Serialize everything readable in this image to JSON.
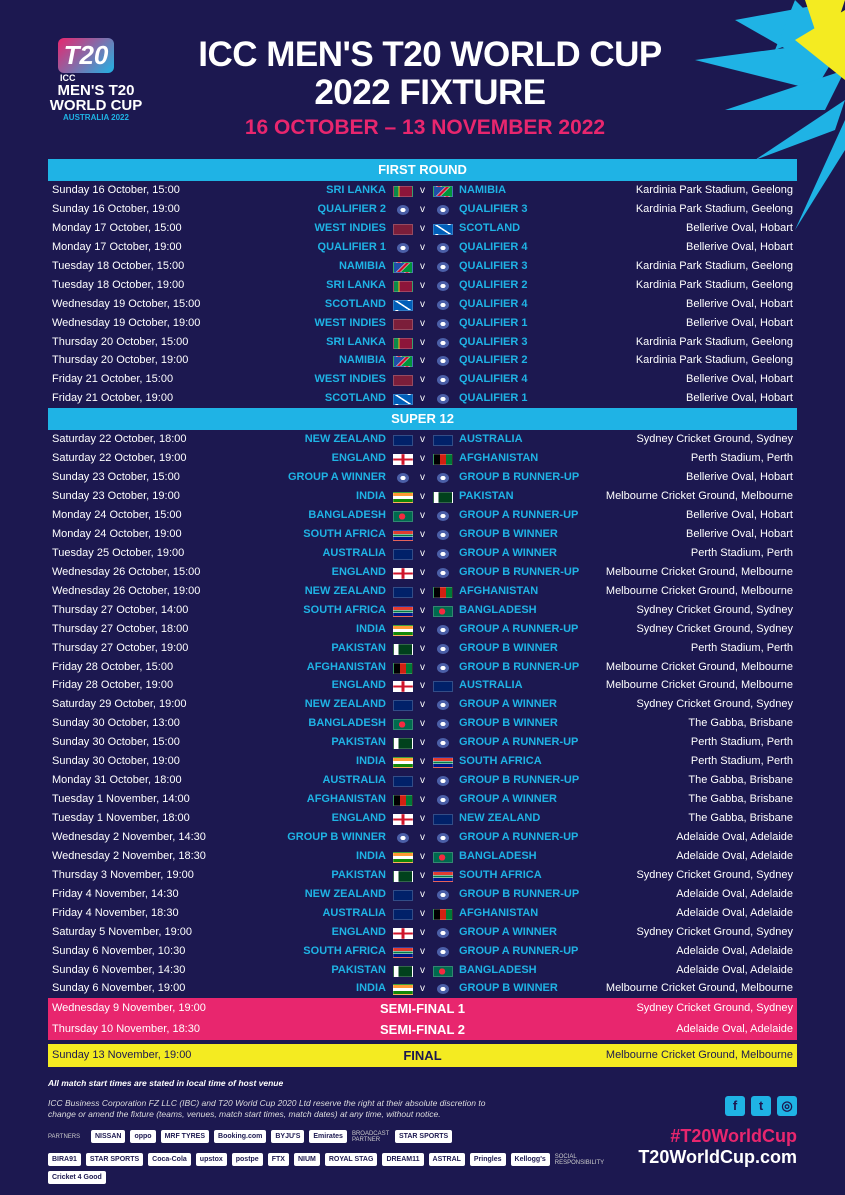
{
  "header": {
    "logo_text": [
      "ICC",
      "MEN'S T20",
      "WORLD CUP",
      "AUSTRALIA 2022"
    ],
    "title_line1": "ICC MEN'S T20 WORLD CUP",
    "title_line2": "2022 FIXTURE",
    "dates": "16 OCTOBER – 13 NOVEMBER 2022"
  },
  "colors": {
    "background": "#1c1850",
    "accent_cyan": "#1fb3e5",
    "accent_pink": "#e8266e",
    "accent_yellow": "#f4eb21"
  },
  "vs_label": "v",
  "first_round": {
    "title": "FIRST ROUND",
    "matches": [
      [
        "Sunday 16 October, 15:00",
        "SRI LANKA",
        "NAMIBIA",
        "Kardinia Park Stadium, Geelong"
      ],
      [
        "Sunday 16 October, 19:00",
        "QUALIFIER 2",
        "QUALIFIER 3",
        "Kardinia Park Stadium, Geelong"
      ],
      [
        "Monday 17 October, 15:00",
        "WEST INDIES",
        "SCOTLAND",
        "Bellerive Oval, Hobart"
      ],
      [
        "Monday 17 October, 19:00",
        "QUALIFIER 1",
        "QUALIFIER 4",
        "Bellerive Oval, Hobart"
      ],
      [
        "Tuesday 18 October, 15:00",
        "NAMIBIA",
        "QUALIFIER 3",
        "Kardinia Park Stadium, Geelong"
      ],
      [
        "Tuesday 18 October, 19:00",
        "SRI LANKA",
        "QUALIFIER 2",
        "Kardinia Park Stadium, Geelong"
      ],
      [
        "Wednesday 19 October, 15:00",
        "SCOTLAND",
        "QUALIFIER 4",
        "Bellerive Oval, Hobart"
      ],
      [
        "Wednesday 19 October, 19:00",
        "WEST INDIES",
        "QUALIFIER 1",
        "Bellerive Oval, Hobart"
      ],
      [
        "Thursday 20 October, 15:00",
        "SRI LANKA",
        "QUALIFIER 3",
        "Kardinia Park Stadium, Geelong"
      ],
      [
        "Thursday 20 October, 19:00",
        "NAMIBIA",
        "QUALIFIER 2",
        "Kardinia Park Stadium, Geelong"
      ],
      [
        "Friday 21 October, 15:00",
        "WEST INDIES",
        "QUALIFIER 4",
        "Bellerive Oval, Hobart"
      ],
      [
        "Friday 21 October, 19:00",
        "SCOTLAND",
        "QUALIFIER 1",
        "Bellerive Oval, Hobart"
      ]
    ]
  },
  "super12": {
    "title": "SUPER 12",
    "matches": [
      [
        "Saturday 22 October, 18:00",
        "NEW ZEALAND",
        "AUSTRALIA",
        "Sydney Cricket Ground, Sydney"
      ],
      [
        "Saturday 22 October, 19:00",
        "ENGLAND",
        "AFGHANISTAN",
        "Perth Stadium, Perth"
      ],
      [
        "Sunday 23 October, 15:00",
        "GROUP A WINNER",
        "GROUP B RUNNER-UP",
        "Bellerive Oval, Hobart"
      ],
      [
        "Sunday 23 October, 19:00",
        "INDIA",
        "PAKISTAN",
        "Melbourne Cricket Ground, Melbourne"
      ],
      [
        "Monday 24 October, 15:00",
        "BANGLADESH",
        "GROUP A RUNNER-UP",
        "Bellerive Oval, Hobart"
      ],
      [
        "Monday 24 October, 19:00",
        "SOUTH AFRICA",
        "GROUP B WINNER",
        "Bellerive Oval, Hobart"
      ],
      [
        "Tuesday 25 October, 19:00",
        "AUSTRALIA",
        "GROUP A WINNER",
        "Perth Stadium, Perth"
      ],
      [
        "Wednesday 26 October, 15:00",
        "ENGLAND",
        "GROUP B RUNNER-UP",
        "Melbourne Cricket Ground, Melbourne"
      ],
      [
        "Wednesday 26 October, 19:00",
        "NEW ZEALAND",
        "AFGHANISTAN",
        "Melbourne Cricket Ground, Melbourne"
      ],
      [
        "Thursday 27 October, 14:00",
        "SOUTH AFRICA",
        "BANGLADESH",
        "Sydney Cricket Ground, Sydney"
      ],
      [
        "Thursday 27 October, 18:00",
        "INDIA",
        "GROUP A RUNNER-UP",
        "Sydney Cricket Ground, Sydney"
      ],
      [
        "Thursday 27 October, 19:00",
        "PAKISTAN",
        "GROUP B WINNER",
        "Perth Stadium, Perth"
      ],
      [
        "Friday 28 October, 15:00",
        "AFGHANISTAN",
        "GROUP B RUNNER-UP",
        "Melbourne Cricket Ground, Melbourne"
      ],
      [
        "Friday 28 October, 19:00",
        "ENGLAND",
        "AUSTRALIA",
        "Melbourne Cricket Ground, Melbourne"
      ],
      [
        "Saturday 29 October, 19:00",
        "NEW ZEALAND",
        "GROUP A WINNER",
        "Sydney Cricket Ground, Sydney"
      ],
      [
        "Sunday 30 October, 13:00",
        "BANGLADESH",
        "GROUP B WINNER",
        "The Gabba, Brisbane"
      ],
      [
        "Sunday 30 October, 15:00",
        "PAKISTAN",
        "GROUP A RUNNER-UP",
        "Perth Stadium, Perth"
      ],
      [
        "Sunday 30 October, 19:00",
        "INDIA",
        "SOUTH AFRICA",
        "Perth Stadium, Perth"
      ],
      [
        "Monday 31 October, 18:00",
        "AUSTRALIA",
        "GROUP B RUNNER-UP",
        "The Gabba, Brisbane"
      ],
      [
        "Tuesday 1 November, 14:00",
        "AFGHANISTAN",
        "GROUP A WINNER",
        "The Gabba, Brisbane"
      ],
      [
        "Tuesday 1 November, 18:00",
        "ENGLAND",
        "NEW ZEALAND",
        "The Gabba, Brisbane"
      ],
      [
        "Wednesday 2 November, 14:30",
        "GROUP B WINNER",
        "GROUP A RUNNER-UP",
        "Adelaide Oval, Adelaide"
      ],
      [
        "Wednesday 2 November, 18:30",
        "INDIA",
        "BANGLADESH",
        "Adelaide Oval, Adelaide"
      ],
      [
        "Thursday 3 November, 19:00",
        "PAKISTAN",
        "SOUTH AFRICA",
        "Sydney Cricket Ground, Sydney"
      ],
      [
        "Friday 4 November, 14:30",
        "NEW ZEALAND",
        "GROUP B RUNNER-UP",
        "Adelaide Oval, Adelaide"
      ],
      [
        "Friday 4 November, 18:30",
        "AUSTRALIA",
        "AFGHANISTAN",
        "Adelaide Oval, Adelaide"
      ],
      [
        "Saturday 5 November, 19:00",
        "ENGLAND",
        "GROUP A WINNER",
        "Sydney Cricket Ground, Sydney"
      ],
      [
        "Sunday 6 November, 10:30",
        "SOUTH AFRICA",
        "GROUP A RUNNER-UP",
        "Adelaide Oval, Adelaide"
      ],
      [
        "Sunday 6 November, 14:30",
        "PAKISTAN",
        "BANGLADESH",
        "Adelaide Oval, Adelaide"
      ],
      [
        "Sunday 6 November, 19:00",
        "INDIA",
        "GROUP B WINNER",
        "Melbourne Cricket Ground, Melbourne"
      ]
    ]
  },
  "knockouts": [
    {
      "date": "Wednesday 9 November, 19:00",
      "name": "SEMI-FINAL 1",
      "venue": "Sydney Cricket Ground, Sydney"
    },
    {
      "date": "Thursday 10 November, 18:30",
      "name": "SEMI-FINAL 2",
      "venue": "Adelaide Oval, Adelaide"
    },
    {
      "date": "Sunday 13 November, 19:00",
      "name": "FINAL",
      "venue": "Melbourne Cricket Ground, Melbourne"
    }
  ],
  "footer": {
    "note": "All match start times are stated in local time of host venue",
    "disclaimer": "ICC Business Corporation FZ LLC (IBC) and T20 World Cup 2020 Ltd reserve the right at their absolute discretion to change or amend the fixture (teams, venues, match start times, match dates) at any time, without notice.",
    "partners_label": "PARTNERS",
    "partners": [
      "NISSAN",
      "oppo",
      "MRF TYRES",
      "Booking.com",
      "BYJU'S",
      "Emirates"
    ],
    "broadcast_label": "BROADCAST PARTNER",
    "broadcast": [
      "STAR SPORTS"
    ],
    "sponsors": [
      "BIRA91",
      "STAR SPORTS",
      "Coca-Cola",
      "upstox",
      "postpe",
      "FTX",
      "NIUM",
      "ROYAL STAG",
      "DREAM11",
      "ASTRAL",
      "Pringles",
      "Kellogg's"
    ],
    "social_resp_label": "SOCIAL RESPONSIBILITY",
    "social_resp": [
      "Cricket 4 Good"
    ],
    "social_icons": [
      "facebook-icon",
      "twitter-icon",
      "instagram-icon"
    ],
    "hashtag": "#T20WorldCup",
    "website": "T20WorldCup.com"
  }
}
